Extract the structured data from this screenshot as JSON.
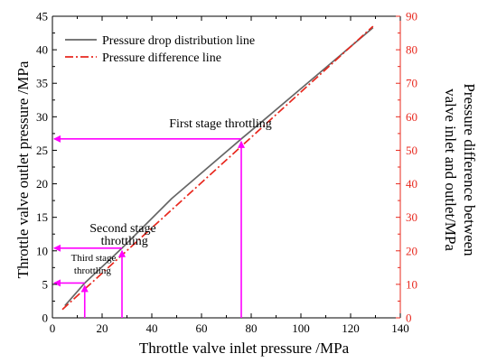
{
  "chart_data": {
    "type": "line",
    "xlabel": "Throttle valve inlet pressure /MPa",
    "ylabel_left": "Throttle valve outlet pressure /MPa",
    "ylabel_right_line1": "Pressure difference between",
    "ylabel_right_line2": "valve inlet and outlet/MPa",
    "xlim": [
      0,
      140
    ],
    "ylim_left": [
      0,
      45
    ],
    "ylim_right": [
      0,
      90
    ],
    "x_ticks": [
      "0",
      "20",
      "40",
      "60",
      "80",
      "100",
      "120",
      "140"
    ],
    "y_left_ticks": [
      "0",
      "5",
      "10",
      "15",
      "20",
      "25",
      "30",
      "35",
      "40",
      "45"
    ],
    "y_right_ticks": [
      "0",
      "10",
      "20",
      "30",
      "40",
      "50",
      "60",
      "70",
      "80",
      "90"
    ],
    "grid": false,
    "legend_position": "top-left",
    "series": [
      {
        "name": "Pressure drop distribution line",
        "axis": "left",
        "color": "#666666",
        "style": "solid",
        "x": [
          5,
          13,
          28,
          48,
          76,
          86,
          129
        ],
        "y": [
          1.8,
          5.2,
          10.4,
          17.8,
          26.7,
          29.8,
          43.3
        ]
      },
      {
        "name": "Pressure difference line",
        "axis": "right",
        "color": "#e8281e",
        "style": "dashdot",
        "x": [
          4,
          129
        ],
        "y": [
          2.5,
          87
        ]
      }
    ],
    "annotations": [
      {
        "lines": [
          "First stage throttling"
        ],
        "x_inlet": 76,
        "y_outlet": 26.7,
        "label_x": 47,
        "label_y": 28.4,
        "size": "normal"
      },
      {
        "lines": [
          "Second stage",
          "throttling"
        ],
        "x_inlet": 28,
        "y_outlet": 10.4,
        "label_x": 15,
        "label_y": 12.8,
        "label_y_line2": 10.9,
        "size": "normal"
      },
      {
        "lines": [
          "Third stage",
          "throttling"
        ],
        "x_inlet": 13,
        "y_outlet": 5.2,
        "label_x": 7.5,
        "label_y": 8.5,
        "label_y_line2": 6.6,
        "size": "small"
      }
    ],
    "annotation_color": "#ff00ff"
  }
}
